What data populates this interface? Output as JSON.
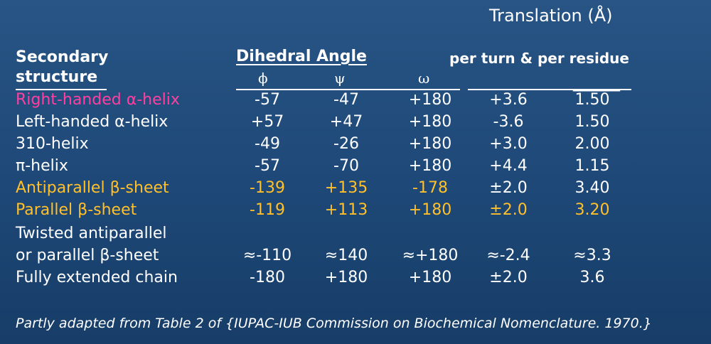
{
  "header": {
    "translation_title": "Translation (Å)",
    "secondary_line1": "Secondary",
    "secondary_line2": "structure",
    "dihedral_angle": "Dihedral Angle",
    "per_turn_residue": "per turn & per residue",
    "phi": "ϕ",
    "psi": "ψ",
    "omega": "ω",
    "blank_underline": "______"
  },
  "rows": [
    {
      "name": "Right-handed α-helix",
      "phi": "-57",
      "psi": "-47",
      "omega": "+180",
      "per_turn": "+3.6",
      "per_residue": "1.50"
    },
    {
      "name": "Left-handed α-helix",
      "phi": "+57",
      "psi": "+47",
      "omega": "+180",
      "per_turn": "-3.6",
      "per_residue": "1.50"
    },
    {
      "name": "310-helix",
      "phi": "-49",
      "psi": "-26",
      "omega": "+180",
      "per_turn": "+3.0",
      "per_residue": "2.00"
    },
    {
      "name": "π-helix",
      "phi": "-57",
      "psi": "-70",
      "omega": "+180",
      "per_turn": "+4.4",
      "per_residue": "1.15"
    },
    {
      "name": "Antiparallel β-sheet",
      "phi": "-139",
      "psi": "+135",
      "omega": "-178",
      "per_turn": "±2.0",
      "per_residue": "3.40"
    },
    {
      "name": "Parallel β-sheet",
      "phi": "-119",
      "psi": "+113",
      "omega": "+180",
      "per_turn": "±2.0",
      "per_residue": "3.20"
    },
    {
      "name": "Twisted antiparallel",
      "phi": "",
      "psi": "",
      "omega": "",
      "per_turn": "",
      "per_residue": ""
    },
    {
      "name": "or parallel β-sheet",
      "phi": "≈-110",
      "psi": "≈140",
      "omega": "≈+180",
      "per_turn": "≈-2.4",
      "per_residue": "≈3.3"
    },
    {
      "name": "Fully extended chain",
      "phi": "-180",
      "psi": "+180",
      "omega": "+180",
      "per_turn": "±2.0",
      "per_residue": "3.6"
    }
  ],
  "footer": "Partly adapted from Table 2 of {IUPAC-IUB Commission on Biochemical Nomenclature. 1970.}",
  "colors": {
    "background": "#1f4a7a",
    "highlight_pink": "#ff3fa0",
    "highlight_gold": "#ffc02a",
    "text": "#ffffff"
  }
}
